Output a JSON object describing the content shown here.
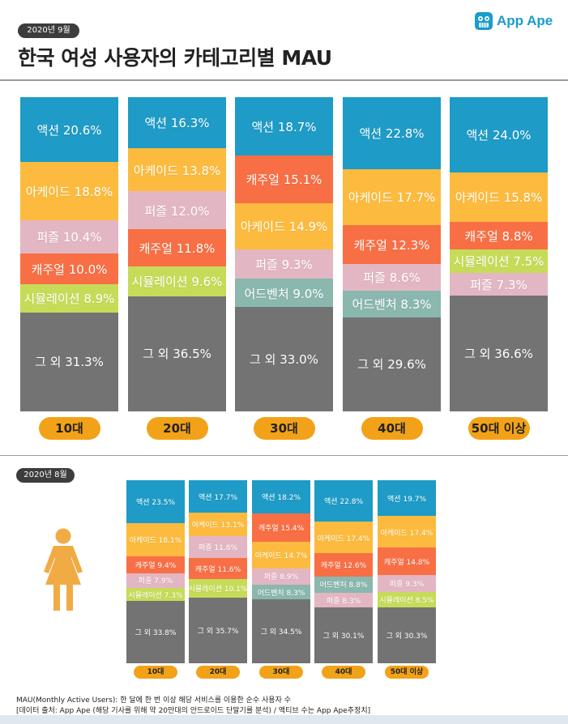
{
  "date_label_top": "2020년 9월",
  "title": "한국 여성 사용자의 카테고리별 MAU",
  "brand": {
    "name": "App Ape",
    "icon": "app-ape-logo-icon"
  },
  "date_label_bottom": "2020년 8월",
  "footer": {
    "line1": "MAU(Monthly Active Users):  한 달에 한 번 이상 해당 서비스를 이용한 순수 사용자 수",
    "line2": "[데이터 출처: App Ape (해당 기사를 위해 약 20만대의 안드로이드 단말기를 분석) / 액티브 수는 App Ape추정치]"
  },
  "colors": {
    "액션": "#1e9bc6",
    "아케이드": "#fcbb3e",
    "퍼즐": "#e3b6c3",
    "캐주얼": "#f86f45",
    "시뮬레이션": "#c6db58",
    "어드벤처": "#8ab7ae",
    "그 외": "#737373",
    "category_pill": "#f2a218"
  },
  "chart_data": [
    {
      "type": "stacked-bar",
      "title": "2020년 9월",
      "categories": [
        "10대",
        "20대",
        "30대",
        "40대",
        "50대 이상"
      ],
      "bars": [
        {
          "category": "10대",
          "segments": [
            {
              "name": "액션",
              "value": 20.6,
              "label": "액션 20.6%"
            },
            {
              "name": "아케이드",
              "value": 18.8,
              "label": "아케이드 18.8%"
            },
            {
              "name": "퍼즐",
              "value": 10.4,
              "label": "퍼즐 10.4%"
            },
            {
              "name": "캐주얼",
              "value": 10.0,
              "label": "캐주얼 10.0%"
            },
            {
              "name": "시뮬레이션",
              "value": 8.9,
              "label": "시뮬레이션 8.9%"
            },
            {
              "name": "그 외",
              "value": 31.3,
              "label": "그 외 31.3%"
            }
          ]
        },
        {
          "category": "20대",
          "segments": [
            {
              "name": "액션",
              "value": 16.3,
              "label": "액션 16.3%"
            },
            {
              "name": "아케이드",
              "value": 13.8,
              "label": "아케이드 13.8%"
            },
            {
              "name": "퍼즐",
              "value": 12.0,
              "label": "퍼즐 12.0%"
            },
            {
              "name": "캐주얼",
              "value": 11.8,
              "label": "캐주얼 11.8%"
            },
            {
              "name": "시뮬레이션",
              "value": 9.6,
              "label": "시뮬레이션 9.6%"
            },
            {
              "name": "그 외",
              "value": 36.5,
              "label": "그 외 36.5%"
            }
          ]
        },
        {
          "category": "30대",
          "segments": [
            {
              "name": "액션",
              "value": 18.7,
              "label": "액션 18.7%"
            },
            {
              "name": "캐주얼",
              "value": 15.1,
              "label": "캐주얼 15.1%"
            },
            {
              "name": "아케이드",
              "value": 14.9,
              "label": "아케이드 14.9%"
            },
            {
              "name": "퍼즐",
              "value": 9.3,
              "label": "퍼즐 9.3%"
            },
            {
              "name": "어드벤처",
              "value": 9.0,
              "label": "어드벤처 9.0%"
            },
            {
              "name": "그 외",
              "value": 33.0,
              "label": "그 외 33.0%"
            }
          ]
        },
        {
          "category": "40대",
          "segments": [
            {
              "name": "액션",
              "value": 22.8,
              "label": "액션 22.8%"
            },
            {
              "name": "아케이드",
              "value": 17.7,
              "label": "아케이드 17.7%"
            },
            {
              "name": "캐주얼",
              "value": 12.3,
              "label": "캐주얼 12.3%"
            },
            {
              "name": "퍼즐",
              "value": 8.6,
              "label": "퍼즐 8.6%"
            },
            {
              "name": "어드벤처",
              "value": 8.3,
              "label": "어드벤처 8.3%"
            },
            {
              "name": "그 외",
              "value": 29.6,
              "label": "그 외 29.6%"
            }
          ]
        },
        {
          "category": "50대 이상",
          "segments": [
            {
              "name": "액션",
              "value": 24.0,
              "label": "액션 24.0%"
            },
            {
              "name": "아케이드",
              "value": 15.8,
              "label": "아케이드 15.8%"
            },
            {
              "name": "캐주얼",
              "value": 8.8,
              "label": "캐주얼 8.8%"
            },
            {
              "name": "시뮬레이션",
              "value": 7.5,
              "label": "시뮬레이션 7.5%"
            },
            {
              "name": "퍼즐",
              "value": 7.3,
              "label": "퍼즐 7.3%"
            },
            {
              "name": "그 외",
              "value": 36.6,
              "label": "그 외 36.6%"
            }
          ]
        }
      ]
    },
    {
      "type": "stacked-bar",
      "title": "2020년 8월",
      "categories": [
        "10대",
        "20대",
        "30대",
        "40대",
        "50대 이상"
      ],
      "bars": [
        {
          "category": "10대",
          "segments": [
            {
              "name": "액션",
              "value": 23.5,
              "label": "액션 23.5%"
            },
            {
              "name": "아케이드",
              "value": 18.1,
              "label": "아케이드 18.1%"
            },
            {
              "name": "캐주얼",
              "value": 9.4,
              "label": "캐주얼 9.4%"
            },
            {
              "name": "퍼즐",
              "value": 7.9,
              "label": "퍼즐 7.9%"
            },
            {
              "name": "시뮬레이션",
              "value": 7.3,
              "label": "시뮬레이션 7.3%"
            },
            {
              "name": "그 외",
              "value": 33.8,
              "label": "그 외 33.8%"
            }
          ]
        },
        {
          "category": "20대",
          "segments": [
            {
              "name": "액션",
              "value": 17.7,
              "label": "액션 17.7%"
            },
            {
              "name": "아케이드",
              "value": 13.1,
              "label": "아케이드 13.1%"
            },
            {
              "name": "퍼즐",
              "value": 11.8,
              "label": "퍼즐 11.8%"
            },
            {
              "name": "캐주얼",
              "value": 11.6,
              "label": "캐주얼 11.6%"
            },
            {
              "name": "시뮬레이션",
              "value": 10.1,
              "label": "시뮬레이션 10.1%"
            },
            {
              "name": "그 외",
              "value": 35.7,
              "label": "그 외 35.7%"
            }
          ]
        },
        {
          "category": "30대",
          "segments": [
            {
              "name": "액션",
              "value": 18.2,
              "label": "액션 18.2%"
            },
            {
              "name": "캐주얼",
              "value": 15.4,
              "label": "캐주얼 15.4%"
            },
            {
              "name": "아케이드",
              "value": 14.7,
              "label": "아케이드 14.7%"
            },
            {
              "name": "퍼즐",
              "value": 8.9,
              "label": "퍼즐 8.9%"
            },
            {
              "name": "어드벤처",
              "value": 8.3,
              "label": "어드벤처 8.3%"
            },
            {
              "name": "그 외",
              "value": 34.5,
              "label": "그 외 34.5%"
            }
          ]
        },
        {
          "category": "40대",
          "segments": [
            {
              "name": "액션",
              "value": 22.8,
              "label": "액션 22.8%"
            },
            {
              "name": "아케이드",
              "value": 17.4,
              "label": "아케이드 17.4%"
            },
            {
              "name": "캐주얼",
              "value": 12.6,
              "label": "캐주얼 12.6%"
            },
            {
              "name": "어드벤처",
              "value": 8.8,
              "label": "어드벤처 8.8%"
            },
            {
              "name": "퍼즐",
              "value": 8.3,
              "label": "퍼즐 8.3%"
            },
            {
              "name": "그 외",
              "value": 30.1,
              "label": "그 외 30.1%"
            }
          ]
        },
        {
          "category": "50대 이상",
          "segments": [
            {
              "name": "액션",
              "value": 19.7,
              "label": "액션 19.7%"
            },
            {
              "name": "아케이드",
              "value": 17.4,
              "label": "아케이드 17.4%"
            },
            {
              "name": "캐주얼",
              "value": 14.8,
              "label": "캐주얼 14.8%"
            },
            {
              "name": "퍼즐",
              "value": 9.3,
              "label": "퍼즐 9.3%"
            },
            {
              "name": "시뮬레이션",
              "value": 8.5,
              "label": "시뮬레이션 8.5%"
            },
            {
              "name": "그 외",
              "value": 30.3,
              "label": "그 외 30.3%"
            }
          ]
        }
      ]
    }
  ]
}
